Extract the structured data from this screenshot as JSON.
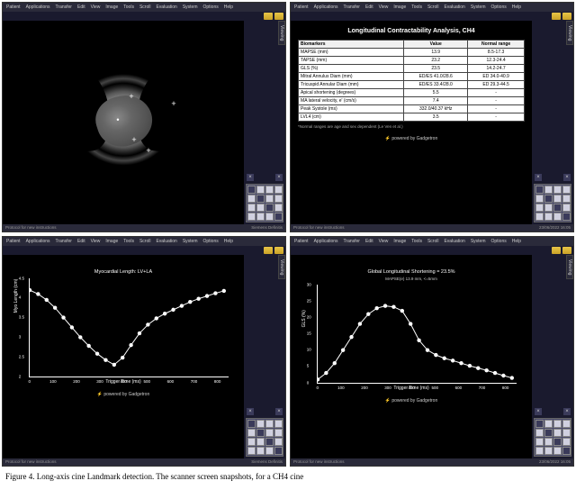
{
  "caption": "Figure 4. Long-axis cine Landmark detection. The scanner screen snapshots, for a CH4 cine",
  "common": {
    "menubar": [
      "Patient",
      "Applications",
      "Transfer",
      "Edit",
      "View",
      "Image",
      "Tools",
      "Scroll",
      "Evaluation",
      "System",
      "Options",
      "Help"
    ],
    "side_tab": "Viewing",
    "status_left": "Protocol for new instructions",
    "status_right": "Siemens Definitis",
    "powered": "powered by Gadgetron",
    "date_right": "23/06/2022 16:05"
  },
  "panel1": {
    "markers": [
      {
        "x": 85,
        "y": 48,
        "sym": "+"
      },
      {
        "x": 132,
        "y": 56,
        "sym": "+"
      },
      {
        "x": 70,
        "y": 74,
        "sym": "•"
      },
      {
        "x": 88,
        "y": 96,
        "sym": "+"
      },
      {
        "x": 104,
        "y": 108,
        "sym": "+"
      }
    ]
  },
  "panel2": {
    "title": "Longitudinal Contractability Analysis, CH4",
    "columns": [
      "Biomarkers",
      "Value",
      "Normal range"
    ],
    "rows": [
      [
        "MAPSE (mm)",
        "13.9",
        "8.5-17.3"
      ],
      [
        "TAPSE (mm)",
        "23.2",
        "12.3-24.4"
      ],
      [
        "GLS (%)",
        "23.5",
        "14.2-24.7"
      ],
      [
        "Mitral Annulus Diam (mm)",
        "ED/ES 41.0/28.6",
        "ED 34.0-40.9"
      ],
      [
        "Tricuspid Annular Diam (mm)",
        "ED/ES 33.4/28.0",
        "ED 29.3-44.5"
      ],
      [
        "Apical shortening (degrees)",
        "5.5",
        "-"
      ],
      [
        "MA lateral velocity, e' (cm/s)",
        "7.4",
        "-"
      ],
      [
        "Peak Systole (ms)",
        "332.0/40.37 kHz",
        "-"
      ],
      [
        "LVL4 (cm)",
        "3.5",
        "-"
      ]
    ],
    "footnote": "*Normal ranges are age and sex dependent (Le Ven et al.)"
  },
  "panel3": {
    "chart": {
      "type": "line",
      "title": "Myocardial Length: LV+LA",
      "xlabel": "Trigger Time (ms)",
      "ylabel": "Myo Length (cm)",
      "xlim": [
        0,
        850
      ],
      "ylim": [
        2.0,
        4.5
      ],
      "xticks": [
        0,
        100,
        200,
        300,
        400,
        500,
        600,
        700,
        800
      ],
      "yticks": [
        2.0,
        2.5,
        3.0,
        3.5,
        4.0,
        4.5
      ],
      "line_color": "#ffffff",
      "marker": "circle",
      "marker_size": 2.2,
      "background_color": "#000000",
      "axis_color": "#ffffff",
      "x": [
        0,
        36,
        72,
        108,
        144,
        180,
        216,
        252,
        288,
        324,
        360,
        396,
        432,
        468,
        504,
        540,
        576,
        612,
        648,
        684,
        720,
        756,
        792,
        828
      ],
      "y": [
        4.2,
        4.1,
        3.95,
        3.75,
        3.5,
        3.25,
        3.0,
        2.78,
        2.58,
        2.42,
        2.3,
        2.48,
        2.8,
        3.1,
        3.32,
        3.48,
        3.6,
        3.7,
        3.8,
        3.9,
        3.98,
        4.05,
        4.12,
        4.18
      ]
    }
  },
  "panel4": {
    "chart": {
      "type": "line",
      "title": "Global Longitudinal Shortening = 23.5%",
      "subtitle": "MAPSE(e) 13.9 mm, <=5mm",
      "xlabel": "Trigger Time (ms)",
      "ylabel": "GLS (%)",
      "xlim": [
        0,
        850
      ],
      "ylim": [
        0,
        30
      ],
      "xticks": [
        0,
        100,
        200,
        300,
        400,
        500,
        600,
        700,
        800
      ],
      "yticks": [
        0,
        5,
        10,
        15,
        20,
        25,
        30
      ],
      "line_color": "#ffffff",
      "marker": "circle",
      "marker_size": 2.2,
      "background_color": "#000000",
      "axis_color": "#ffffff",
      "x": [
        0,
        36,
        72,
        108,
        144,
        180,
        216,
        252,
        288,
        324,
        360,
        396,
        432,
        468,
        504,
        540,
        576,
        612,
        648,
        684,
        720,
        756,
        792,
        828
      ],
      "y": [
        1,
        3,
        6,
        10,
        14,
        18,
        21,
        22.8,
        23.5,
        23.2,
        22.0,
        18.0,
        13.0,
        10.0,
        8.5,
        7.5,
        6.8,
        6.0,
        5.2,
        4.5,
        3.8,
        3.0,
        2.2,
        1.5
      ]
    }
  }
}
